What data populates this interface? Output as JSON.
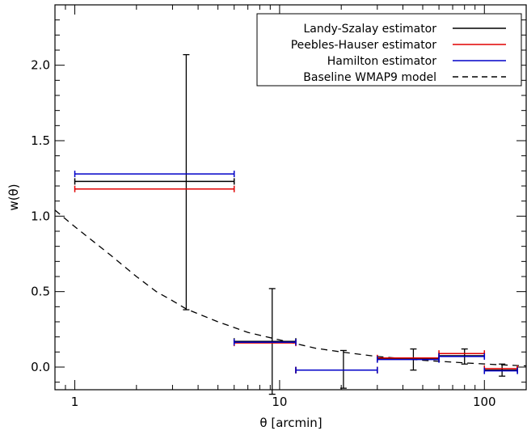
{
  "chart_data": {
    "type": "scatter",
    "title": "",
    "xlabel": "θ [arcmin]",
    "ylabel": "w(θ)",
    "xscale": "log",
    "xlim": [
      0.8,
      160
    ],
    "ylim": [
      -0.15,
      2.4
    ],
    "x_ticks": [
      {
        "value": 1,
        "label": "1"
      },
      {
        "value": 10,
        "label": "10"
      },
      {
        "value": 100,
        "label": "100"
      }
    ],
    "y_ticks": [
      {
        "value": 0.0,
        "label": "0.0"
      },
      {
        "value": 0.5,
        "label": "0.5"
      },
      {
        "value": 1.0,
        "label": "1.0"
      },
      {
        "value": 1.5,
        "label": "1.5"
      },
      {
        "value": 2.0,
        "label": "2.0"
      }
    ],
    "legend_position": "top-right",
    "series": [
      {
        "name": "Landy-Szalay estimator",
        "color": "#000000",
        "style": "solid",
        "points": [
          {
            "x": 3.5,
            "xmin": 1.0,
            "xmax": 6.0,
            "y": 1.23,
            "ylo": 0.38,
            "yhi": 2.07
          },
          {
            "x": 9.2,
            "xmin": 6.0,
            "xmax": 12.0,
            "y": 0.17,
            "ylo": -0.18,
            "yhi": 0.52
          },
          {
            "x": 20.5,
            "xmin": 12.0,
            "xmax": 30.0,
            "y": -0.02,
            "ylo": -0.14,
            "yhi": 0.11
          },
          {
            "x": 45.0,
            "xmin": 30.0,
            "xmax": 60.0,
            "y": 0.055,
            "ylo": -0.02,
            "yhi": 0.12
          },
          {
            "x": 80.0,
            "xmin": 60.0,
            "xmax": 100.0,
            "y": 0.075,
            "ylo": 0.02,
            "yhi": 0.12
          },
          {
            "x": 122.0,
            "xmin": 100.0,
            "xmax": 145.0,
            "y": -0.02,
            "ylo": -0.06,
            "yhi": 0.02
          }
        ]
      },
      {
        "name": "Peebles-Hauser estimator",
        "color": "#e00000",
        "style": "solid",
        "points": [
          {
            "x": 3.5,
            "xmin": 1.0,
            "xmax": 6.0,
            "y": 1.18
          },
          {
            "x": 9.2,
            "xmin": 6.0,
            "xmax": 12.0,
            "y": 0.16
          },
          {
            "x": 20.5,
            "xmin": 12.0,
            "xmax": 30.0,
            "y": -0.02
          },
          {
            "x": 45.0,
            "xmin": 30.0,
            "xmax": 60.0,
            "y": 0.06
          },
          {
            "x": 80.0,
            "xmin": 60.0,
            "xmax": 100.0,
            "y": 0.09
          },
          {
            "x": 122.0,
            "xmin": 100.0,
            "xmax": 145.0,
            "y": -0.01
          }
        ]
      },
      {
        "name": "Hamilton estimator",
        "color": "#0000c8",
        "style": "solid",
        "points": [
          {
            "x": 3.5,
            "xmin": 1.0,
            "xmax": 6.0,
            "y": 1.28
          },
          {
            "x": 9.2,
            "xmin": 6.0,
            "xmax": 12.0,
            "y": 0.165
          },
          {
            "x": 20.5,
            "xmin": 12.0,
            "xmax": 30.0,
            "y": -0.02
          },
          {
            "x": 45.0,
            "xmin": 30.0,
            "xmax": 60.0,
            "y": 0.05
          },
          {
            "x": 80.0,
            "xmin": 60.0,
            "xmax": 100.0,
            "y": 0.07
          },
          {
            "x": 122.0,
            "xmin": 100.0,
            "xmax": 145.0,
            "y": -0.025
          }
        ]
      },
      {
        "name": "Baseline WMAP9 model",
        "color": "#000000",
        "style": "dashed",
        "line": [
          {
            "x": 0.8,
            "y": 1.04
          },
          {
            "x": 1.0,
            "y": 0.93
          },
          {
            "x": 1.5,
            "y": 0.74
          },
          {
            "x": 2.0,
            "y": 0.6
          },
          {
            "x": 2.5,
            "y": 0.5
          },
          {
            "x": 3.0,
            "y": 0.44
          },
          {
            "x": 3.5,
            "y": 0.385
          },
          {
            "x": 5.0,
            "y": 0.3
          },
          {
            "x": 7.0,
            "y": 0.23
          },
          {
            "x": 10.0,
            "y": 0.18
          },
          {
            "x": 15.0,
            "y": 0.125
          },
          {
            "x": 20.0,
            "y": 0.1
          },
          {
            "x": 30.0,
            "y": 0.07
          },
          {
            "x": 50.0,
            "y": 0.045
          },
          {
            "x": 80.0,
            "y": 0.028
          },
          {
            "x": 120.0,
            "y": 0.015
          },
          {
            "x": 160.0,
            "y": 0.008
          }
        ]
      }
    ]
  }
}
